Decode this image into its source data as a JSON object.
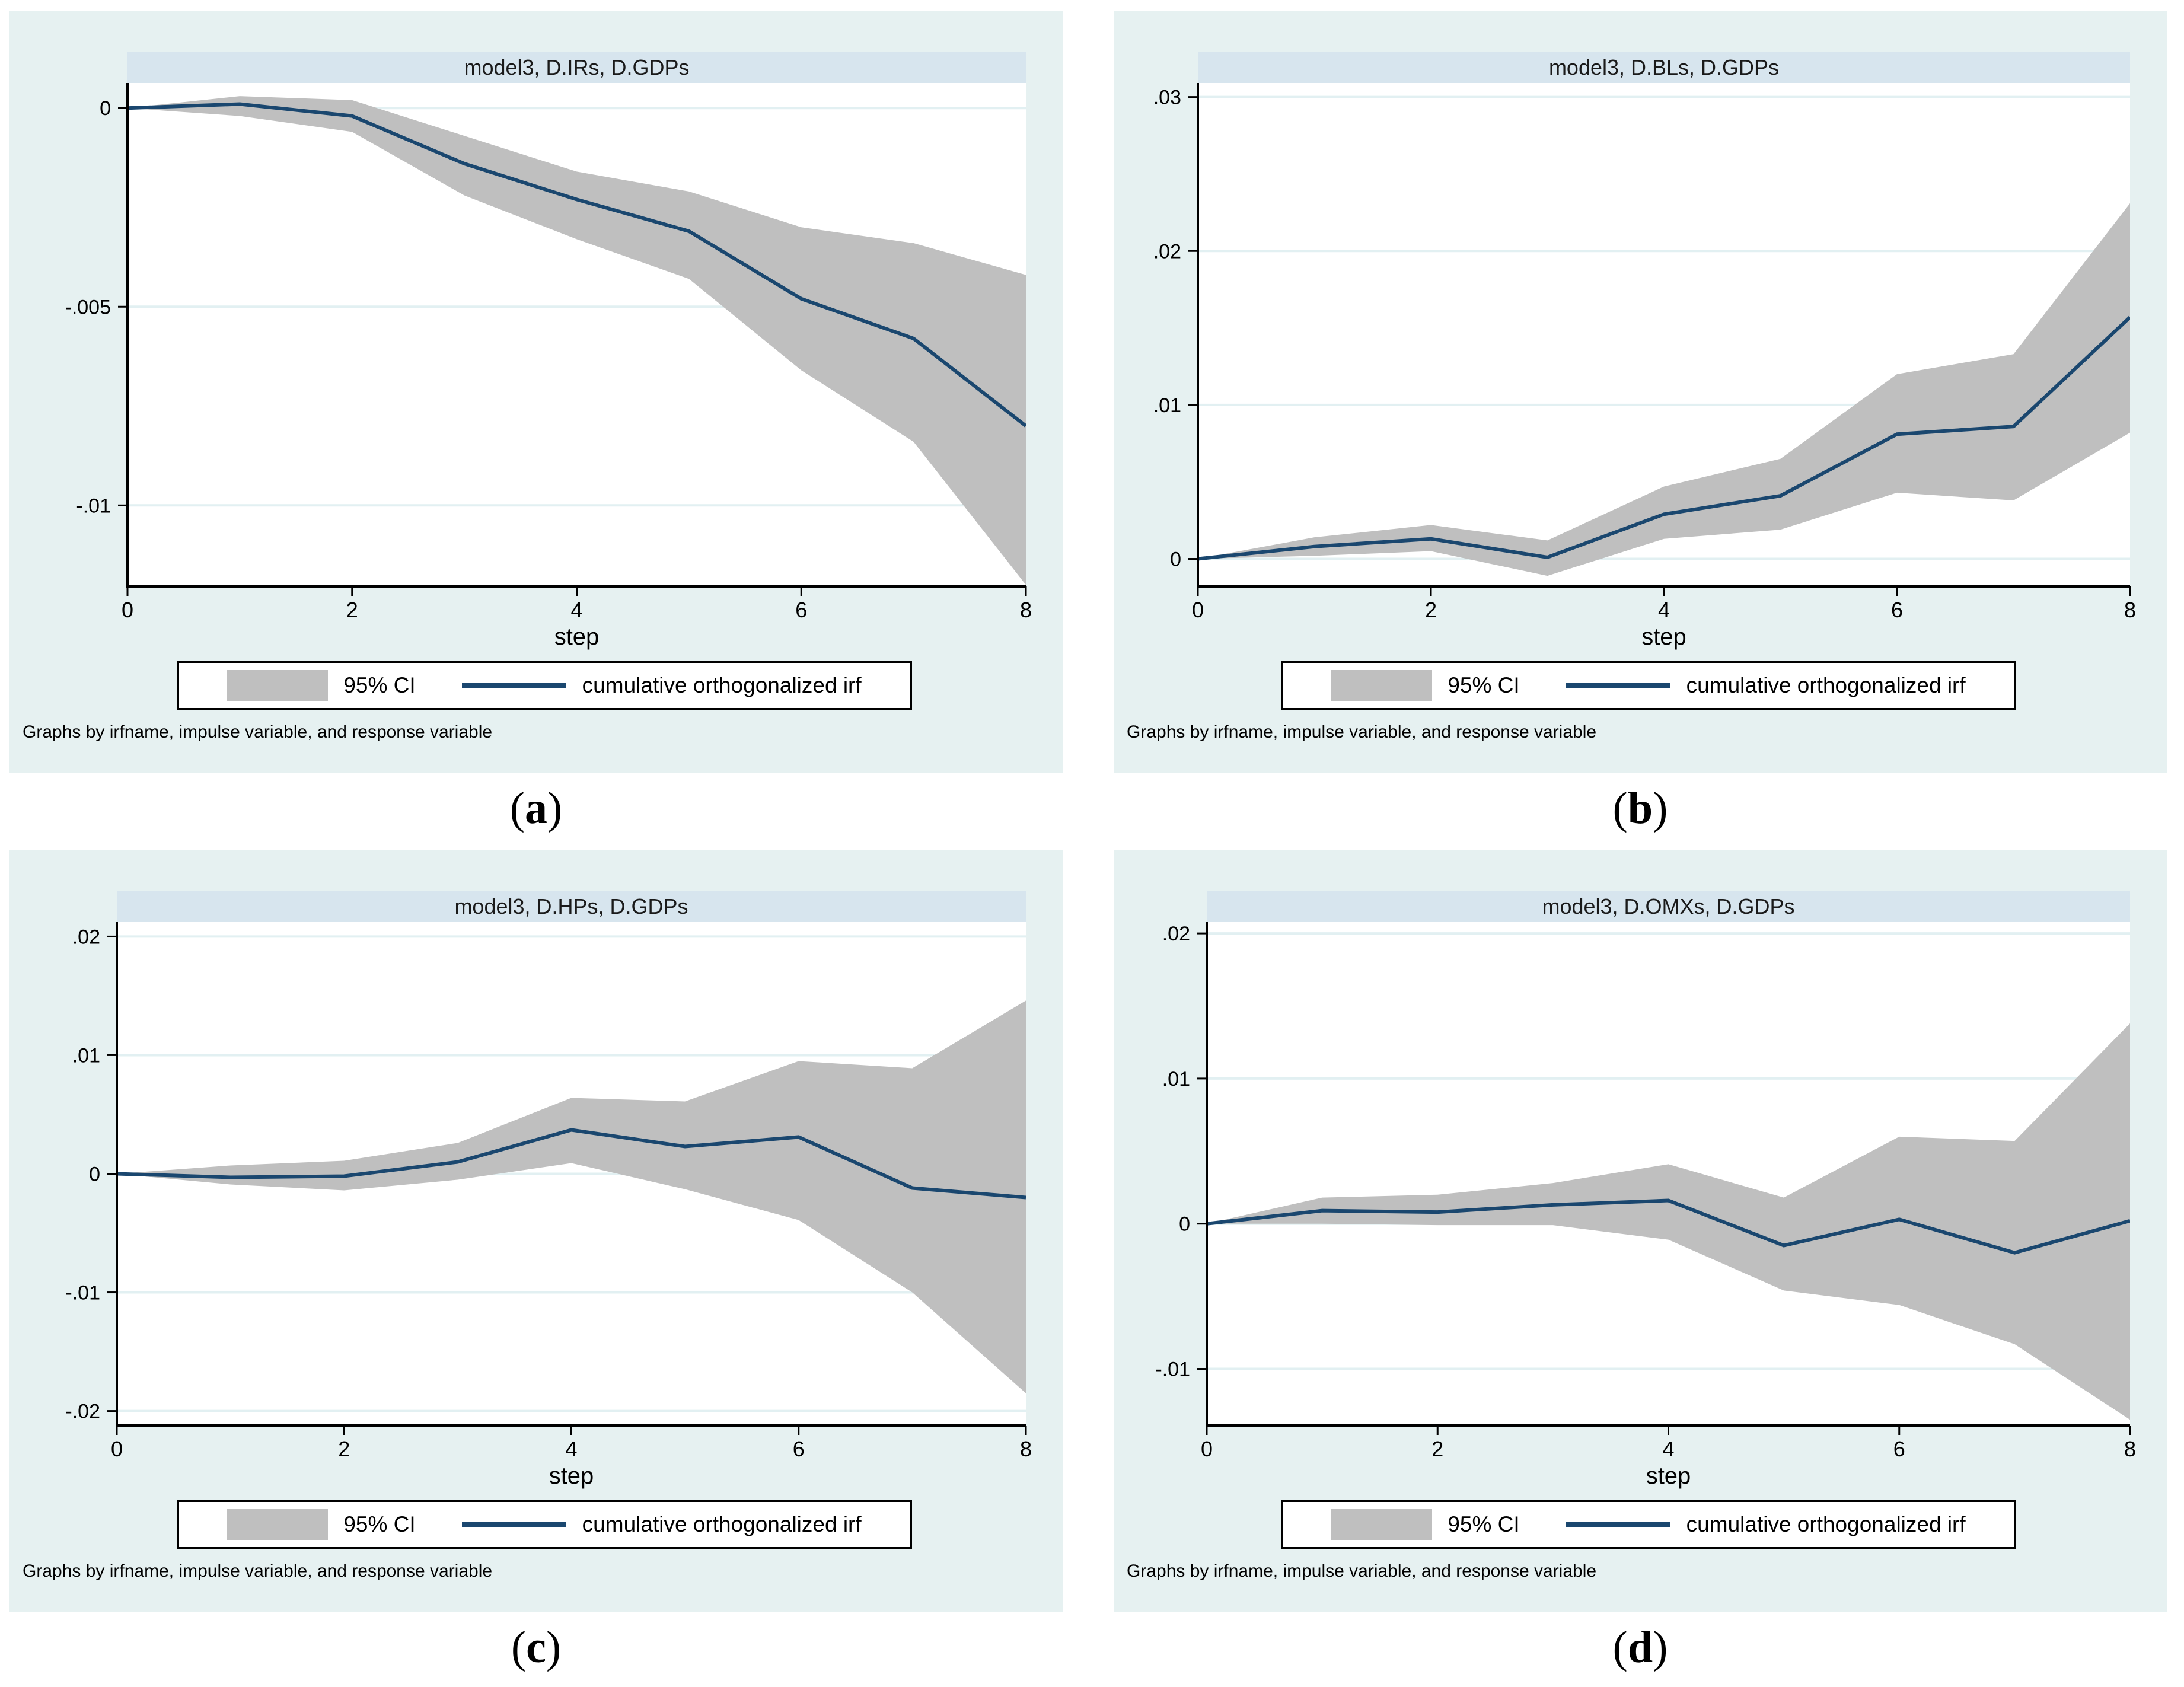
{
  "xlabel": "step",
  "footnote": "Graphs by irfname, impulse variable, and response variable",
  "caption_open": "(",
  "caption_close": ")",
  "legend": {
    "ci_label": "95% CI",
    "irf_label": "cumulative orthogonalized irf"
  },
  "colors": {
    "page_bg": "#ffffff",
    "panel_bg": "#e6f1f1",
    "title_bar": "#d7e5ee",
    "plot_bg": "#ffffff",
    "grid": "#e2f0f2",
    "ci_band": "#bfbfbf",
    "irf_line": "#1a476f",
    "axis": "#000000",
    "legend_border": "#000000"
  },
  "panels": [
    {
      "title": "model3, D.IRs, D.GDPs",
      "caption_letter": "a"
    },
    {
      "title": "model3, D.BLs, D.GDPs",
      "caption_letter": "b"
    },
    {
      "title": "model3, D.HPs, D.GDPs",
      "caption_letter": "c"
    },
    {
      "title": "model3, D.OMXs, D.GDPs",
      "caption_letter": "d"
    }
  ],
  "chart_data": [
    {
      "type": "area",
      "title": "model3, D.IRs, D.GDPs",
      "xlabel": "step",
      "x": [
        0,
        1,
        2,
        3,
        4,
        5,
        6,
        7,
        8
      ],
      "series": [
        {
          "name": "cumulative orthogonalized irf",
          "values": [
            0,
            0.0001,
            -0.0002,
            -0.0014,
            -0.0023,
            -0.0031,
            -0.0048,
            -0.0058,
            -0.008
          ]
        },
        {
          "name": "95% CI upper",
          "values": [
            0,
            0.0003,
            0.0002,
            -0.0007,
            -0.0016,
            -0.0021,
            -0.003,
            -0.0034,
            -0.0042
          ]
        },
        {
          "name": "95% CI lower",
          "values": [
            0,
            -0.0002,
            -0.0006,
            -0.0022,
            -0.0033,
            -0.0043,
            -0.0066,
            -0.0084,
            -0.012
          ]
        }
      ],
      "xticks": [
        0,
        2,
        4,
        6,
        8
      ],
      "yticks": [
        0,
        -0.005,
        -0.01
      ],
      "ytick_labels": [
        "0",
        "-.005",
        "-.01"
      ],
      "xlim": [
        0,
        8
      ],
      "ylim": [
        -0.01204,
        0.00063
      ],
      "grid": true,
      "legend_position": "bottom",
      "legend_entries": [
        "95% CI",
        "cumulative orthogonalized irf"
      ]
    },
    {
      "type": "area",
      "title": "model3, D.BLs, D.GDPs",
      "xlabel": "step",
      "x": [
        0,
        1,
        2,
        3,
        4,
        5,
        6,
        7,
        8
      ],
      "series": [
        {
          "name": "cumulative orthogonalized irf",
          "values": [
            0,
            0.0008,
            0.0013,
            0.0001,
            0.0029,
            0.0041,
            0.0081,
            0.0086,
            0.0157
          ]
        },
        {
          "name": "95% CI upper",
          "values": [
            0,
            0.0014,
            0.0022,
            0.0012,
            0.0047,
            0.0065,
            0.012,
            0.0133,
            0.0231
          ]
        },
        {
          "name": "95% CI lower",
          "values": [
            0,
            0.0002,
            0.0005,
            -0.0011,
            0.0013,
            0.0019,
            0.0043,
            0.0038,
            0.0082
          ]
        }
      ],
      "xticks": [
        0,
        2,
        4,
        6,
        8
      ],
      "yticks": [
        0,
        0.01,
        0.02,
        0.03
      ],
      "ytick_labels": [
        "0",
        ".01",
        ".02",
        ".03"
      ],
      "xlim": [
        0,
        8
      ],
      "ylim": [
        -0.00179,
        0.03091
      ],
      "grid": true,
      "legend_position": "bottom",
      "legend_entries": [
        "95% CI",
        "cumulative orthogonalized irf"
      ]
    },
    {
      "type": "area",
      "title": "model3, D.HPs, D.GDPs",
      "xlabel": "step",
      "x": [
        0,
        1,
        2,
        3,
        4,
        5,
        6,
        7,
        8
      ],
      "series": [
        {
          "name": "cumulative orthogonalized irf",
          "values": [
            0,
            -0.0003,
            -0.0002,
            0.001,
            0.0037,
            0.0023,
            0.0031,
            -0.0012,
            -0.002
          ]
        },
        {
          "name": "95% CI upper",
          "values": [
            0,
            0.0007,
            0.0011,
            0.0026,
            0.0064,
            0.0061,
            0.0095,
            0.0089,
            0.0146
          ]
        },
        {
          "name": "95% CI lower",
          "values": [
            0,
            -0.0009,
            -0.0014,
            -0.0005,
            0.0009,
            -0.0013,
            -0.0039,
            -0.01,
            -0.0185
          ]
        }
      ],
      "xticks": [
        0,
        2,
        4,
        6,
        8
      ],
      "yticks": [
        0.02,
        0.01,
        0,
        -0.01,
        -0.02
      ],
      "ytick_labels": [
        ".02",
        ".01",
        "0",
        "-.01",
        "-.02"
      ],
      "xlim": [
        0,
        8
      ],
      "ylim": [
        -0.02122,
        0.02122
      ],
      "grid": true,
      "legend_position": "bottom",
      "legend_entries": [
        "95% CI",
        "cumulative orthogonalized irf"
      ]
    },
    {
      "type": "area",
      "title": "model3, D.OMXs, D.GDPs",
      "xlabel": "step",
      "x": [
        0,
        1,
        2,
        3,
        4,
        5,
        6,
        7,
        8
      ],
      "series": [
        {
          "name": "cumulative orthogonalized irf",
          "values": [
            0,
            0.0009,
            0.0008,
            0.0013,
            0.0016,
            -0.0015,
            0.0003,
            -0.002,
            0.0002
          ]
        },
        {
          "name": "95% CI upper",
          "values": [
            0,
            0.0018,
            0.002,
            0.0028,
            0.0041,
            0.0018,
            0.006,
            0.0057,
            0.0138
          ]
        },
        {
          "name": "95% CI lower",
          "values": [
            0,
            0.0,
            -0.0001,
            -0.0001,
            -0.0011,
            -0.0046,
            -0.0056,
            -0.0083,
            -0.0135
          ]
        }
      ],
      "xticks": [
        0,
        2,
        4,
        6,
        8
      ],
      "yticks": [
        0.02,
        0.01,
        0,
        -0.01
      ],
      "ytick_labels": [
        ".02",
        ".01",
        "0",
        "-.01"
      ],
      "xlim": [
        0,
        8
      ],
      "ylim": [
        -0.0139,
        0.02078
      ],
      "grid": true,
      "legend_position": "bottom",
      "legend_entries": [
        "95% CI",
        "cumulative orthogonalized irf"
      ]
    }
  ]
}
